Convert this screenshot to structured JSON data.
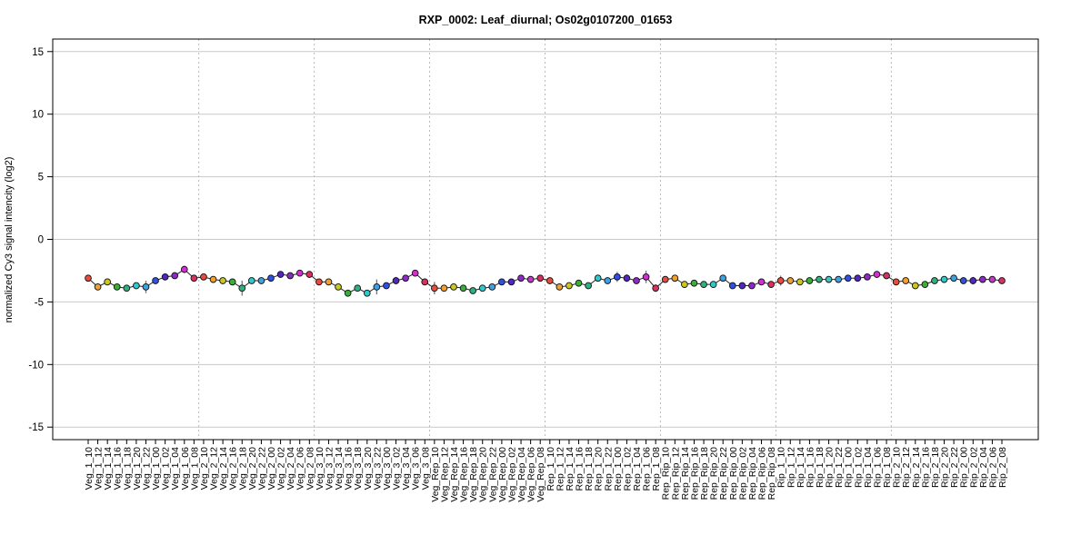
{
  "chart_data": {
    "type": "line",
    "title": "RXP_0002: Leaf_diurnal; Os02g0107200_01653",
    "ylabel": "normalized Cy3 signal intencity (log2)",
    "xlabel": "",
    "ylim": [
      -16,
      16
    ],
    "yticks": [
      -15,
      -10,
      -5,
      0,
      5,
      10,
      15
    ],
    "grid": "horizontal gridlines at y ticks; dotted vertical separators between sample groups",
    "legend": "none",
    "group_separators_after": [
      "Veg_1_08",
      "Veg_2_08",
      "Veg_3_08",
      "Veg_Rep_08",
      "Rep_1_08",
      "Rep_Rip_08",
      "Rip_1_08"
    ],
    "categories": [
      "Veg_1_10",
      "Veg_1_12",
      "Veg_1_14",
      "Veg_1_16",
      "Veg_1_18",
      "Veg_1_20",
      "Veg_1_22",
      "Veg_1_00",
      "Veg_1_02",
      "Veg_1_04",
      "Veg_1_06",
      "Veg_1_08",
      "Veg_2_10",
      "Veg_2_12",
      "Veg_2_14",
      "Veg_2_16",
      "Veg_2_18",
      "Veg_2_20",
      "Veg_2_22",
      "Veg_2_00",
      "Veg_2_02",
      "Veg_2_04",
      "Veg_2_06",
      "Veg_2_08",
      "Veg_3_10",
      "Veg_3_12",
      "Veg_3_14",
      "Veg_3_16",
      "Veg_3_18",
      "Veg_3_20",
      "Veg_3_22",
      "Veg_3_00",
      "Veg_3_02",
      "Veg_3_04",
      "Veg_3_06",
      "Veg_3_08",
      "Veg_Rep_10",
      "Veg_Rep_12",
      "Veg_Rep_14",
      "Veg_Rep_16",
      "Veg_Rep_18",
      "Veg_Rep_20",
      "Veg_Rep_22",
      "Veg_Rep_00",
      "Veg_Rep_02",
      "Veg_Rep_04",
      "Veg_Rep_06",
      "Veg_Rep_08",
      "Rep_1_10",
      "Rep_1_12",
      "Rep_1_14",
      "Rep_1_16",
      "Rep_1_18",
      "Rep_1_20",
      "Rep_1_22",
      "Rep_1_00",
      "Rep_1_02",
      "Rep_1_04",
      "Rep_1_06",
      "Rep_1_08",
      "Rep_Rip_10",
      "Rep_Rip_12",
      "Rep_Rip_14",
      "Rep_Rip_16",
      "Rep_Rip_18",
      "Rep_Rip_20",
      "Rep_Rip_22",
      "Rep_Rip_00",
      "Rep_Rip_02",
      "Rep_Rip_04",
      "Rep_Rip_06",
      "Rep_Rip_08",
      "Rip_1_10",
      "Rip_1_12",
      "Rip_1_14",
      "Rip_1_16",
      "Rip_1_18",
      "Rip_1_20",
      "Rip_1_22",
      "Rip_1_00",
      "Rip_1_02",
      "Rip_1_04",
      "Rip_1_06",
      "Rip_1_08",
      "Rip_2_10",
      "Rip_2_12",
      "Rip_2_14",
      "Rip_2_16",
      "Rip_2_18",
      "Rip_2_20",
      "Rip_2_22",
      "Rip_2_00",
      "Rip_2_02",
      "Rip_2_04",
      "Rip_2_06",
      "Rip_2_08"
    ],
    "values": [
      -3.1,
      -3.8,
      -3.4,
      -3.8,
      -3.9,
      -3.7,
      -3.8,
      -3.3,
      -3.0,
      -2.9,
      -2.4,
      -3.1,
      -3.0,
      -3.2,
      -3.3,
      -3.4,
      -3.9,
      -3.3,
      -3.3,
      -3.1,
      -2.8,
      -2.9,
      -2.7,
      -2.8,
      -3.4,
      -3.4,
      -3.8,
      -4.3,
      -3.9,
      -4.3,
      -3.8,
      -3.7,
      -3.3,
      -3.1,
      -2.7,
      -3.4,
      -3.9,
      -3.9,
      -3.8,
      -3.9,
      -4.1,
      -3.9,
      -3.8,
      -3.4,
      -3.4,
      -3.1,
      -3.2,
      -3.1,
      -3.3,
      -3.8,
      -3.7,
      -3.5,
      -3.7,
      -3.1,
      -3.3,
      -3.0,
      -3.1,
      -3.3,
      -3.0,
      -3.9,
      -3.2,
      -3.1,
      -3.6,
      -3.5,
      -3.6,
      -3.6,
      -3.1,
      -3.7,
      -3.7,
      -3.7,
      -3.4,
      -3.6,
      -3.3,
      -3.3,
      -3.4,
      -3.3,
      -3.2,
      -3.2,
      -3.2,
      -3.1,
      -3.1,
      -3.0,
      -2.8,
      -2.9,
      -3.4,
      -3.3,
      -3.7,
      -3.6,
      -3.3,
      -3.2,
      -3.1,
      -3.3,
      -3.3,
      -3.2,
      -3.2,
      -3.3
    ],
    "errors": [
      0.1,
      0.1,
      0.2,
      0.2,
      0.15,
      0.1,
      0.5,
      0.15,
      0.1,
      0.1,
      0.3,
      0.1,
      0.1,
      0.1,
      0.2,
      0.2,
      0.6,
      0.1,
      0.1,
      0.1,
      0.2,
      0.1,
      0.1,
      0.1,
      0.2,
      0.1,
      0.1,
      0.15,
      0.1,
      0.15,
      0.6,
      0.2,
      0.3,
      0.2,
      0.1,
      0.2,
      0.5,
      0.1,
      0.1,
      0.1,
      0.1,
      0.1,
      0.1,
      0.1,
      0.2,
      0.1,
      0.1,
      0.2,
      0.1,
      0.2,
      0.1,
      0.2,
      0.1,
      0.1,
      0.1,
      0.4,
      0.3,
      0.2,
      0.5,
      0.3,
      0.1,
      0.2,
      0.15,
      0.1,
      0.1,
      0.1,
      0.2,
      0.1,
      0.1,
      0.1,
      0.1,
      0.1,
      0.4,
      0.2,
      0.1,
      0.1,
      0.1,
      0.2,
      0.1,
      0.1,
      0.1,
      0.1,
      0.1,
      0.1,
      0.2,
      0.1,
      0.15,
      0.15,
      0.1,
      0.1,
      0.1,
      0.2,
      0.3,
      0.1,
      0.2,
      0.2
    ],
    "point_colors": [
      "#e74c3c",
      "#f0a030",
      "#c8c820",
      "#38b038",
      "#30b080",
      "#30c8c8",
      "#40a0e0",
      "#3050e0",
      "#5028c0",
      "#9028c8",
      "#d030d0",
      "#d83060",
      "#e74c3c",
      "#f0a030",
      "#c8c820",
      "#38b038",
      "#30b080",
      "#30c8c8",
      "#40a0e0",
      "#3050e0",
      "#5028c0",
      "#9028c8",
      "#d030d0",
      "#d83060",
      "#e74c3c",
      "#f0a030",
      "#c8c820",
      "#38b038",
      "#30b080",
      "#30c8c8",
      "#40a0e0",
      "#3050e0",
      "#5028c0",
      "#9028c8",
      "#d030d0",
      "#d83060",
      "#e74c3c",
      "#f0a030",
      "#c8c820",
      "#38b038",
      "#30b080",
      "#30c8c8",
      "#40a0e0",
      "#3050e0",
      "#5028c0",
      "#9028c8",
      "#d030d0",
      "#d83060",
      "#e74c3c",
      "#f0a030",
      "#c8c820",
      "#38b038",
      "#30b080",
      "#30c8c8",
      "#40a0e0",
      "#3050e0",
      "#5028c0",
      "#9028c8",
      "#d030d0",
      "#d83060",
      "#e74c3c",
      "#f0a030",
      "#c8c820",
      "#38b038",
      "#30b080",
      "#30c8c8",
      "#40a0e0",
      "#3050e0",
      "#5028c0",
      "#9028c8",
      "#d030d0",
      "#d83060",
      "#e74c3c",
      "#f0a030",
      "#c8c820",
      "#38b038",
      "#30b080",
      "#30c8c8",
      "#40a0e0",
      "#3050e0",
      "#5028c0",
      "#9028c8",
      "#d030d0",
      "#d83060",
      "#e74c3c",
      "#f0a030",
      "#c8c820",
      "#38b038",
      "#30b080",
      "#30c8c8",
      "#40a0e0",
      "#3050e0",
      "#5028c0",
      "#9028c8",
      "#d030d0",
      "#d83060"
    ]
  }
}
